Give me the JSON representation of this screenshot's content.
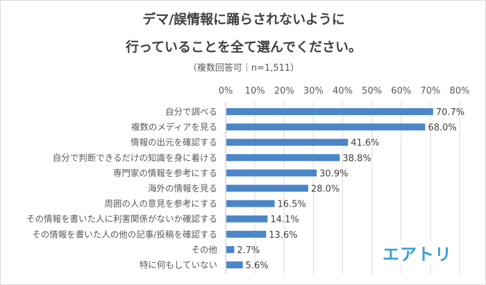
{
  "chart_data": {
    "type": "bar",
    "orientation": "horizontal",
    "title_line1": "デマ/誤情報に踊らされないように",
    "title_line2": "行っていることを全て選んでください。",
    "subtitle": "（複数回答可｜n=1,511）",
    "categories": [
      "自分で調べる",
      "複数のメディアを見る",
      "情報の出元を確認する",
      "自分で判断できるだけの知識を身に着ける",
      "専門家の情報を参考にする",
      "海外の情報を見る",
      "周囲の人の意見を参考にする",
      "その情報を書いた人に利害関係がないか確認する",
      "その情報を書いた人の他の記事/投稿を確認する",
      "その他",
      "特に何もしていない"
    ],
    "values": [
      70.7,
      68.0,
      41.6,
      38.8,
      30.9,
      28.0,
      16.5,
      14.1,
      13.6,
      2.7,
      5.6
    ],
    "data_labels": [
      "70.7%",
      "68.0%",
      "41.6%",
      "38.8%",
      "30.9%",
      "28.0%",
      "16.5%",
      "14.1%",
      "13.6%",
      "2.7%",
      "5.6%"
    ],
    "xlim": [
      0,
      80
    ],
    "ticks": [
      "0%",
      "10%",
      "20%",
      "30%",
      "40%",
      "50%",
      "60%",
      "70%",
      "80%"
    ],
    "tick_values": [
      0,
      10,
      20,
      30,
      40,
      50,
      60,
      70,
      80
    ],
    "axis_position": "top",
    "grid": true,
    "bar_color": "#4a86c8",
    "grid_color": "#d9d9d9"
  },
  "logo": {
    "text": "エアトリ",
    "color": "#3a9fd6"
  }
}
